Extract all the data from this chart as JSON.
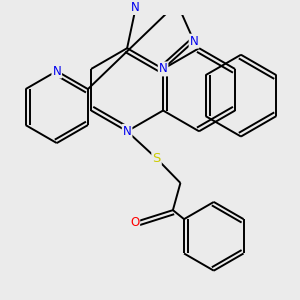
{
  "bg_color": "#ebebeb",
  "bond_color": "#000000",
  "bond_width": 1.4,
  "atom_colors": {
    "N": "#0000ee",
    "S": "#cccc00",
    "O": "#ff0000",
    "C": "#000000"
  },
  "font_size_atom": 8.5,
  "fig_size": [
    3.0,
    3.0
  ],
  "dpi": 100
}
